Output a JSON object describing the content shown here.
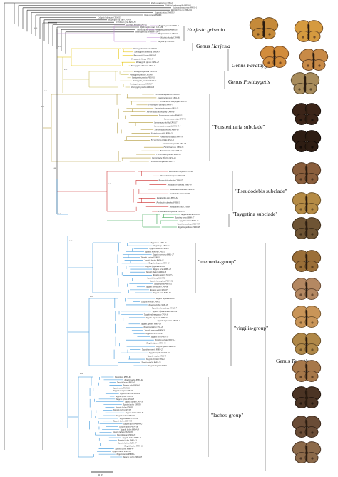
{
  "colors": {
    "outgroup": "#222222",
    "harjesia": "#c18ad6",
    "parataygetis": "#e6c300",
    "posttaygetis": "#c7bb55",
    "forsterinaria": "#b29a3a",
    "pseudodebis": "#cc2b2b",
    "taygetina": "#1f9a3a",
    "taygetis": "#2f8fd8"
  },
  "top_taxa": [
    "Pindis squamistriga CP08-16",
    "Dichitholimphus armilla PM08-01",
    "Euptychoides saturnus NW103-1",
    "Rareuptychia clio PM04-04",
    "Euptychia picea NW105-3",
    "Cissia myncea NW98-6",
    "Cyllopsis hedemanni CP14-02",
    "Magneuptychia libye CP10-04",
    "Erichthodes julia PM04-33",
    "Zischkaia pacarus CP07-02",
    "Yphthimoides renata CP14-08",
    "Chloreuptychia arnaca NW119-3",
    "Hermeuptychia hermes NW147-5"
  ],
  "groups": [
    {
      "name": "harjesia_species",
      "label": "Harjesia griseola",
      "italic": true
    },
    {
      "name": "harjesia_genus",
      "label": "Genus Harjesia",
      "italic_part": "Harjesia"
    },
    {
      "name": "parataygetis",
      "label": "Genus Parataygetis",
      "italic_part": "Parataygetis"
    },
    {
      "name": "posttaygetis",
      "label": "Genus Posttaygetis",
      "italic_part": "Posttaygetis"
    },
    {
      "name": "forsterinaria",
      "label": "\"Forsterinaria subclade\""
    },
    {
      "name": "pseudodebis",
      "label": "\"Pseudodebis subclade\""
    },
    {
      "name": "taygetina",
      "label": "\"Taygetina subclade\""
    },
    {
      "name": "memeria",
      "label": "\"memeria-group\""
    },
    {
      "name": "virgilia",
      "label": "\"virgilia-group\""
    },
    {
      "name": "laches",
      "label": "\"laches-group\""
    },
    {
      "name": "taygetis_genus",
      "label": "Genus Taygetis",
      "italic_part": "Taygetis"
    }
  ],
  "clade_leaves": {
    "harjesia": [
      "Harjesia griseola PM06-11",
      "Harjesia griseola PM06-16",
      "Harjesia obscura CP06-91",
      "Harjesia blanda CP04-86",
      "Harjesia sp. NW121-2"
    ],
    "parataygetis": [
      "Parataygetis albinotata NW134-4",
      "Parataygetis albinotata DNA09-3",
      "Parataygetis lineata PM10-05",
      "Parataygetis lineata CP01-06",
      "Parataygetis sp. nov. CP04-43",
      "Parataygetis albinotata CP01-43"
    ],
    "posttaygetis": [
      "Posttaygetis penelea NW107-4",
      "Posttaygetis penelea CP01-48",
      "Posttaygetis penelea PM01-11",
      "Posttaygetis penelea DNA07-11",
      "Posttaygetis penelea CP10-17",
      "Posttaygetis penelea PM04-06"
    ],
    "forsterinaria": [
      "Forsterinaria quantius NW121-9",
      "Forsterinaria necys CP04-16",
      "Forsterinaria neonympha CP01-95",
      "Forsterinaria boliviana NW98-7",
      "Forsterinaria inornata CP11-24",
      "Forsterinaria anophthalma CP09-08",
      "Forsterinaria rustica PM06-15",
      "Forsterinaria coipa CP04-71",
      "Forsterinaria pichita CP01-17",
      "Forsterinaria pronophila NW140-2",
      "Forsterinaria proxima PM08-08",
      "Forsterinaria stella PM06-21",
      "Forsterinaria itatiaia NW97-3",
      "Forsterinaria pallida CP04-42",
      "Forsterinaria guaniloi CP11-83",
      "Forsterinaria sp. CP04-55",
      "Forsterinaria antje CP08-82",
      "Forsterinaria punctata PM01-13",
      "Forsterinaria difficilis CP10-26",
      "Forsterinaria enjuerma CP01-77"
    ],
    "pseudodebis": [
      "Pseudodebis marpessa CP01-42",
      "Pseudodebis marpessa PM01-19",
      "Pseudodebis valentina CP08-07",
      "Pseudodebis valentina PM01-03",
      "Pseudodebis valentina PM04-14",
      "Pseudodebis zimri CP11-83",
      "Pseudodebis zimri PM01-02",
      "Pseudodebis dorothea PM08-53",
      "Pseudodebis celia CP10-09",
      "Pseudodebis euptychidia PM01-05"
    ],
    "taygetina": [
      "Taygetina kerea CP01-83",
      "Taygetina kerea PM08-17",
      "Taygetina kerea PM04-16",
      "Taygetina banghaasi CP04-33",
      "Taygetina peribaea PM09-08"
    ],
    "memeria": [
      "Taygetis sp. CP01-15",
      "Taygetis sp. CP01-04",
      "Taygetis memeria CP04-47",
      "Taygetis memeria CP01-53",
      "Taygetis mermeria PM01-27",
      "Taygetis leuctra CP08-11",
      "Taygetis leuctra PM04-12",
      "Taygetis cleopatra CP04-81",
      "Taygetis fulginia PM01-06",
      "Taygetis larua PM01-18",
      "Taygetis thamyra PM04-30",
      "Taygetis thamyra NW127-3",
      "Taygetis kerea CP10-06",
      "Taygetis inconspicua PM04-02",
      "Taygetis acuta PM01-21",
      "Taygetis chrysogone CP04-86",
      "Taygetis sosis CP01-07",
      "Taygetis sosis PM04-09"
    ],
    "virgilia": [
      "Taygetis virgilia PM01-23",
      "Taygetis virgilia CP04-32",
      "Taygetis virgilia CP08-15",
      "Taygetis rufomarginata NW126-7",
      "Taygetis rufomarginata PM10-08",
      "Taygetis rufomarginata CP10-10",
      "Taygetis tripunctata PM02-8",
      "Taygetis tripunctata NW100-1",
      "Taygetis ypthima PM02-04",
      "Taygetis ypthima CP11-20",
      "Taygetis angulosa PM04-28",
      "Taygetis echo CP04-45",
      "Taygetis echo PM01-14",
      "Taygetis uncinata NW151-4",
      "Taygetis zippora CP01-46",
      "Taygetis zippora PM08-19",
      "Taygetis mermeria PM08-25",
      "Taygetis virgilia DNA07-004",
      "Taygetis virgilia UN0040",
      "Taygetis virgilia CP04-24",
      "Taygetis virgilia PM01-26",
      "Taygetis virgilia UN0041"
    ],
    "laches": [
      "Taygetis sp. PM04-86",
      "Taygetis laches PM01-02",
      "Taygetis laches PM01-01",
      "Taygetis echo PM01-03",
      "Taygetis echo PM01-18",
      "Taygetis thamyra CP04-68",
      "Taygetis thamyra CP04-89",
      "Taygetis sylvia CP01-58",
      "Taygetis sylvia CP04-83",
      "Taygetis laches CP03-50",
      "Taygetis laches UN0058",
      "Taygetis laches UN0059",
      "Taygetis laches CP-C83",
      "Taygetis laches CP11-01",
      "Taygetis laches CP07-74",
      "Taygetis laches CP07-58",
      "Taygetis laches PM04-40",
      "Taygetis laches PM04-42",
      "Taygetis laches PM04-18",
      "Taygetis laches PM04-13",
      "Taygetis laches DNA09-033",
      "Taygetis laches PM02-06",
      "Taygetis laches PM02-40",
      "Taygetis laches PM01-13",
      "Taygetis laches PM04-37",
      "Taygetis laches PM04-18",
      "Taygetis laches PM08-47",
      "Taygetis laches PM01-04",
      "Taygetis laches PM06-14",
      "Taygetis laches PM04-03"
    ]
  },
  "support_values": [
    "1",
    "0.86",
    "0.98",
    "0.93",
    "0.91",
    "0.88",
    "0.94",
    "0.97",
    "0.99",
    "0.90",
    "0.92",
    "0.95"
  ],
  "scale_bar_label": "0.03"
}
